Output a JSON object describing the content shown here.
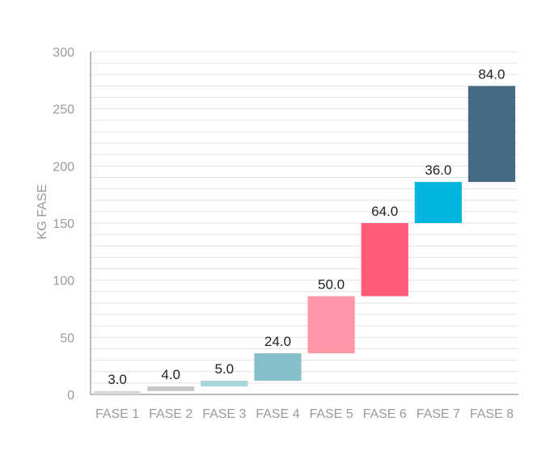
{
  "chart_data": {
    "type": "bar",
    "subtype": "waterfall",
    "categories": [
      "FASE 1",
      "FASE 2",
      "FASE 3",
      "FASE 4",
      "FASE 5",
      "FASE 6",
      "FASE 7",
      "FASE 8"
    ],
    "values": [
      3.0,
      4.0,
      5.0,
      24.0,
      50.0,
      64.0,
      36.0,
      84.0
    ],
    "data_labels": [
      "3.0",
      "4.0",
      "5.0",
      "24.0",
      "50.0",
      "64.0",
      "36.0",
      "84.0"
    ],
    "colors": [
      "#d9d9d9",
      "#c8c8c8",
      "#a9d6dc",
      "#85c0c9",
      "#ff97a8",
      "#ff5a78",
      "#00b6e0",
      "#456a84"
    ],
    "title": "",
    "xlabel": "",
    "ylabel": "KG FASE",
    "ylim": [
      0,
      300
    ],
    "yticks": [
      0,
      50,
      100,
      150,
      200,
      250,
      300
    ],
    "ytick_labels": [
      "0",
      "50",
      "100",
      "150",
      "200",
      "250",
      "300"
    ],
    "minor_grid_step": 10,
    "grid": true,
    "legend": "none"
  }
}
